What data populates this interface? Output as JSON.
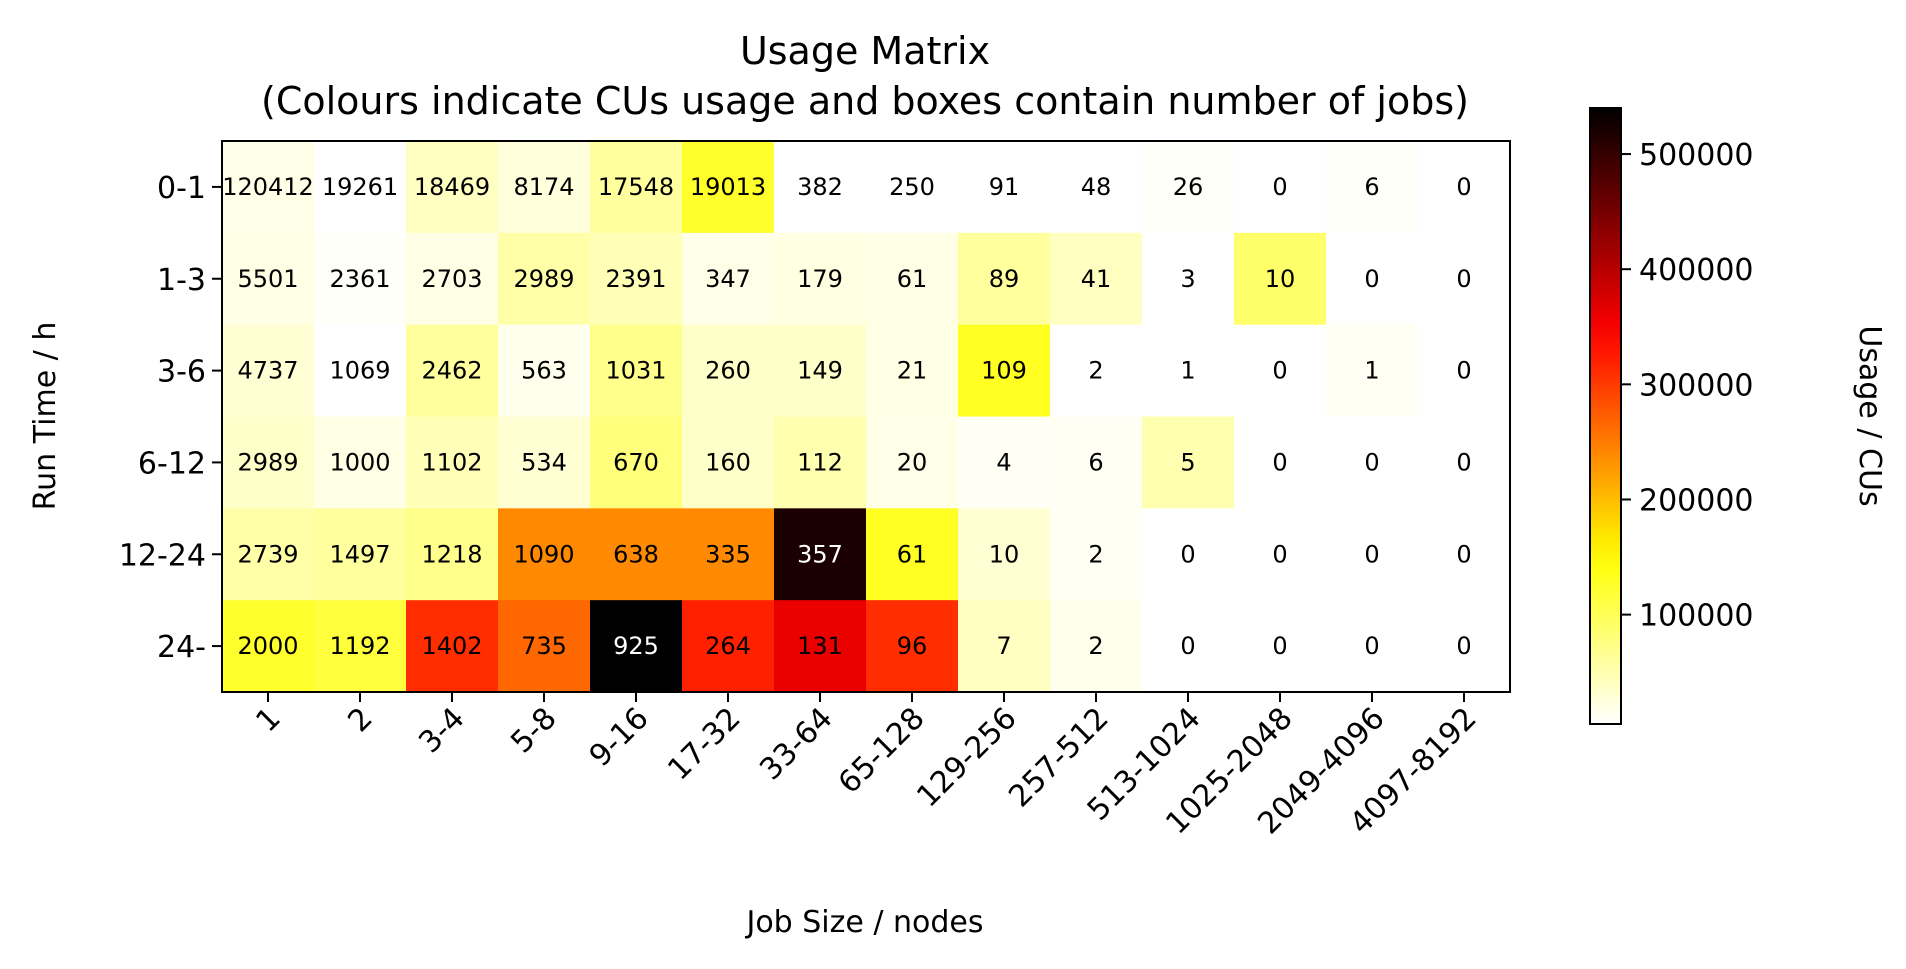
{
  "chart_data": {
    "type": "heatmap",
    "title": "Usage Matrix",
    "subtitle": "(Colours indicate CUs usage and boxes contain number of jobs)",
    "xlabel": "Job Size / nodes",
    "ylabel": "Run Time / h",
    "x_categories": [
      "1",
      "2",
      "3-4",
      "5-8",
      "9-16",
      "17-32",
      "33-64",
      "65-128",
      "129-256",
      "257-512",
      "513-1024",
      "1025-2048",
      "2049-4096",
      "4097-8192"
    ],
    "y_categories": [
      "0-1",
      "1-3",
      "3-6",
      "6-12",
      "12-24",
      "24-"
    ],
    "job_counts": [
      [
        120412,
        19261,
        18469,
        8174,
        17548,
        19013,
        382,
        250,
        91,
        48,
        26,
        0,
        6,
        0
      ],
      [
        5501,
        2361,
        2703,
        2989,
        2391,
        347,
        179,
        61,
        89,
        41,
        3,
        10,
        0,
        0
      ],
      [
        4737,
        1069,
        2462,
        563,
        1031,
        260,
        149,
        21,
        109,
        2,
        1,
        0,
        1,
        0
      ],
      [
        2989,
        1000,
        1102,
        534,
        670,
        160,
        112,
        20,
        4,
        6,
        5,
        0,
        0,
        0
      ],
      [
        2739,
        1497,
        1218,
        1090,
        638,
        335,
        357,
        61,
        10,
        2,
        0,
        0,
        0,
        0
      ],
      [
        2000,
        1192,
        1402,
        735,
        925,
        264,
        131,
        96,
        7,
        2,
        0,
        0,
        0,
        0
      ]
    ],
    "usage_cus": [
      [
        18000,
        5000,
        40000,
        25000,
        60000,
        125000,
        0,
        0,
        0,
        0,
        8000,
        0,
        8000,
        0
      ],
      [
        20000,
        8000,
        20000,
        55000,
        45000,
        18000,
        22000,
        20000,
        60000,
        40000,
        0,
        90000,
        0,
        0
      ],
      [
        30000,
        5000,
        60000,
        15000,
        70000,
        35000,
        35000,
        20000,
        130000,
        0,
        0,
        0,
        12000,
        0
      ],
      [
        35000,
        20000,
        45000,
        30000,
        80000,
        35000,
        50000,
        18000,
        10000,
        12000,
        50000,
        0,
        0,
        0
      ],
      [
        55000,
        60000,
        70000,
        240000,
        240000,
        240000,
        520000,
        130000,
        30000,
        12000,
        0,
        0,
        0,
        0
      ],
      [
        125000,
        115000,
        310000,
        265000,
        540000,
        320000,
        360000,
        310000,
        40000,
        15000,
        0,
        0,
        0,
        0
      ]
    ],
    "colorbar": {
      "label": "Usage / CUs",
      "colormap": "hot_r",
      "range": [
        5000,
        540000
      ],
      "ticks": [
        100000,
        200000,
        300000,
        400000,
        500000
      ],
      "tick_labels": [
        "100000",
        "200000",
        "300000",
        "400000",
        "500000"
      ]
    }
  }
}
